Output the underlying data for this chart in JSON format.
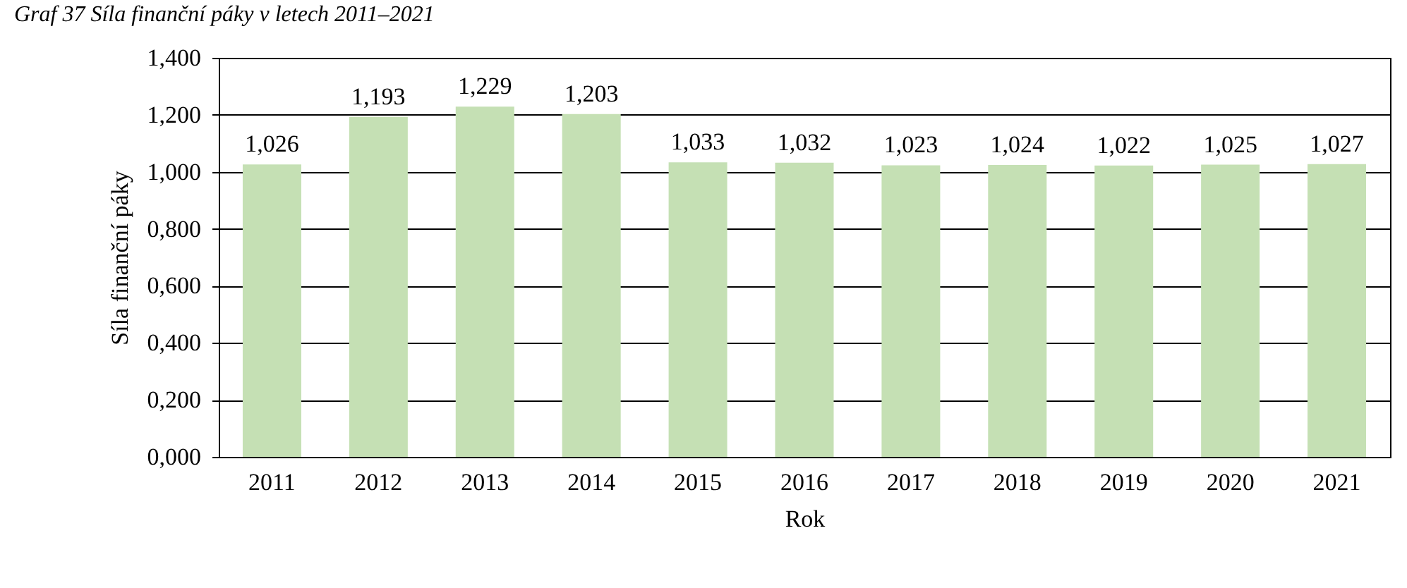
{
  "chart_data": {
    "type": "bar",
    "title": "Graf 37 Síla finanční páky v letech 2011–2021",
    "xlabel": "Rok",
    "ylabel": "Síla finanční páky",
    "categories": [
      "2011",
      "2012",
      "2013",
      "2014",
      "2015",
      "2016",
      "2017",
      "2018",
      "2019",
      "2020",
      "2021"
    ],
    "values": [
      1.026,
      1.193,
      1.229,
      1.203,
      1.033,
      1.032,
      1.023,
      1.024,
      1.022,
      1.025,
      1.027
    ],
    "value_labels": [
      "1,026",
      "1,193",
      "1,229",
      "1,203",
      "1,033",
      "1,032",
      "1,023",
      "1,024",
      "1,022",
      "1,025",
      "1,027"
    ],
    "color": "#c5e0b4",
    "ylim": [
      0,
      1.4
    ],
    "yticks": [
      {
        "value": 0,
        "label": "0,000"
      },
      {
        "value": 0.2,
        "label": "0,200"
      },
      {
        "value": 0.4,
        "label": "0,400"
      },
      {
        "value": 0.6,
        "label": "0,600"
      },
      {
        "value": 0.8,
        "label": "0,800"
      },
      {
        "value": 1,
        "label": "1,000"
      },
      {
        "value": 1.2,
        "label": "1,200"
      },
      {
        "value": 1.4,
        "label": "1,400"
      }
    ],
    "grid": true
  }
}
